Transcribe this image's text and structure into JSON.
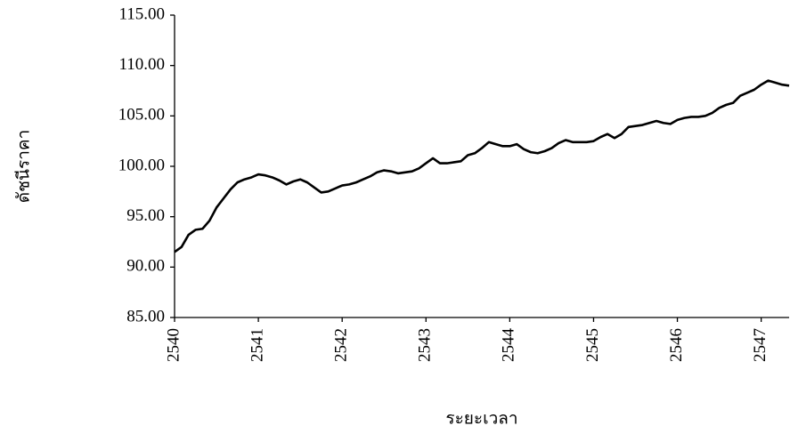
{
  "chart_data": {
    "type": "line",
    "y_label": "ดัชนีราคา",
    "x_label": "ระยะเวลา",
    "categories": [
      "2540",
      null,
      null,
      null,
      null,
      null,
      null,
      null,
      null,
      null,
      null,
      null,
      "2541",
      null,
      null,
      null,
      null,
      null,
      null,
      null,
      null,
      null,
      null,
      null,
      "2542",
      null,
      null,
      null,
      null,
      null,
      null,
      null,
      null,
      null,
      null,
      null,
      "2543",
      null,
      null,
      null,
      null,
      null,
      null,
      null,
      null,
      null,
      null,
      null,
      "2544",
      null,
      null,
      null,
      null,
      null,
      null,
      null,
      null,
      null,
      null,
      null,
      "2545",
      null,
      null,
      null,
      null,
      null,
      null,
      null,
      null,
      null,
      null,
      null,
      "2546",
      null,
      null,
      null,
      null,
      null,
      null,
      null,
      null,
      null,
      null,
      null,
      "2547",
      null,
      null,
      null,
      null
    ],
    "values": [
      91.5,
      92.0,
      93.2,
      93.7,
      93.8,
      94.6,
      95.9,
      96.8,
      97.7,
      98.4,
      98.7,
      98.9,
      99.2,
      99.1,
      98.9,
      98.6,
      98.2,
      98.5,
      98.7,
      98.4,
      97.9,
      97.4,
      97.5,
      97.8,
      98.1,
      98.2,
      98.4,
      98.7,
      99.0,
      99.4,
      99.6,
      99.5,
      99.3,
      99.4,
      99.5,
      99.8,
      100.3,
      100.8,
      100.3,
      100.3,
      100.4,
      100.5,
      101.1,
      101.3,
      101.8,
      102.4,
      102.2,
      102.0,
      102.0,
      102.2,
      101.7,
      101.4,
      101.3,
      101.5,
      101.8,
      102.3,
      102.6,
      102.4,
      102.4,
      102.4,
      102.5,
      102.9,
      103.2,
      102.8,
      103.2,
      103.9,
      104.0,
      104.1,
      104.3,
      104.5,
      104.3,
      104.2,
      104.6,
      104.8,
      104.9,
      104.9,
      105.0,
      105.3,
      105.8,
      106.1,
      106.3,
      107.0,
      107.3,
      107.6,
      108.1,
      108.5,
      108.3,
      108.1,
      108.0
    ],
    "color": "#000000",
    "ylim": [
      85,
      115
    ],
    "yticks": [
      {
        "value": 85,
        "label": "85.00"
      },
      {
        "value": 90,
        "label": "90.00"
      },
      {
        "value": 95,
        "label": "95.00"
      },
      {
        "value": 100,
        "label": "100.00"
      },
      {
        "value": 105,
        "label": "105.00"
      },
      {
        "value": 110,
        "label": "110.00"
      },
      {
        "value": 115,
        "label": "115.00"
      }
    ],
    "grid": false
  }
}
